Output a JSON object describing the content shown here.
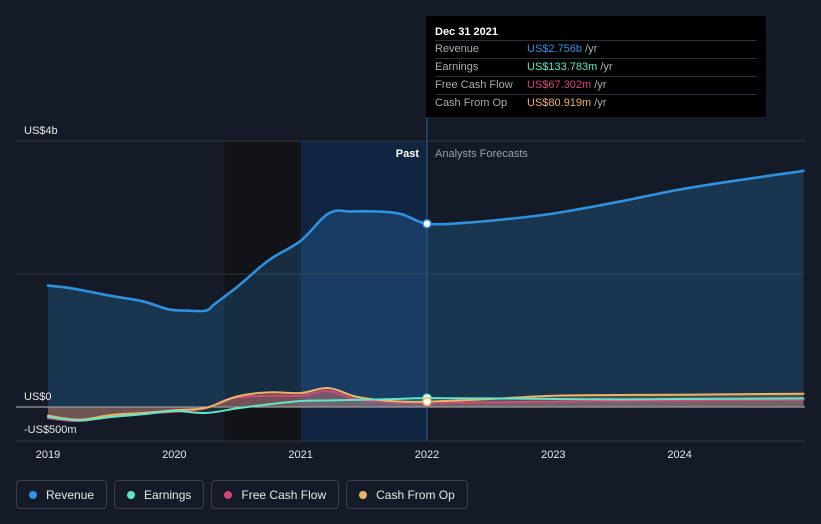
{
  "chart_data": {
    "type": "line",
    "x_unit": "year",
    "xlim": [
      2018.98,
      2024.98
    ],
    "ylim": [
      -500,
      4000
    ],
    "y_unit": "US$ millions",
    "y_tick_labels": [
      {
        "value": 4000,
        "label": "US$4b"
      },
      {
        "value": 0,
        "label": "US$0"
      },
      {
        "value": -500,
        "label": "-US$500m"
      }
    ],
    "x_tick_labels": [
      {
        "value": 2019,
        "label": "2019"
      },
      {
        "value": 2020,
        "label": "2020"
      },
      {
        "value": 2021,
        "label": "2021"
      },
      {
        "value": 2022,
        "label": "2022"
      },
      {
        "value": 2023,
        "label": "2023"
      },
      {
        "value": 2024,
        "label": "2024"
      }
    ],
    "divider_x": 2022.0,
    "past_shade_start": 2021.0,
    "past_label": "Past",
    "forecast_label": "Analysts Forecasts",
    "series": [
      {
        "name": "Revenue",
        "color": "#2f92e0",
        "points": [
          [
            2019.0,
            1825
          ],
          [
            2019.2,
            1780
          ],
          [
            2019.5,
            1670
          ],
          [
            2019.75,
            1590
          ],
          [
            2019.95,
            1470
          ],
          [
            2020.1,
            1450
          ],
          [
            2020.25,
            1450
          ],
          [
            2020.32,
            1550
          ],
          [
            2020.5,
            1810
          ],
          [
            2020.75,
            2210
          ],
          [
            2021.0,
            2500
          ],
          [
            2021.22,
            2910
          ],
          [
            2021.4,
            2940
          ],
          [
            2021.6,
            2940
          ],
          [
            2021.8,
            2900
          ],
          [
            2022.0,
            2756
          ],
          [
            2022.3,
            2770
          ],
          [
            2022.6,
            2820
          ],
          [
            2023.0,
            2910
          ],
          [
            2023.5,
            3080
          ],
          [
            2024.0,
            3270
          ],
          [
            2024.5,
            3420
          ],
          [
            2024.98,
            3550
          ]
        ]
      },
      {
        "name": "Earnings",
        "color": "#5ee6c8",
        "points": [
          [
            2019.0,
            -150
          ],
          [
            2019.25,
            -200
          ],
          [
            2019.5,
            -150
          ],
          [
            2019.75,
            -110
          ],
          [
            2020.0,
            -60
          ],
          [
            2020.25,
            -90
          ],
          [
            2020.5,
            -20
          ],
          [
            2020.75,
            40
          ],
          [
            2021.0,
            90
          ],
          [
            2021.25,
            100
          ],
          [
            2021.5,
            110
          ],
          [
            2021.75,
            120
          ],
          [
            2022.0,
            134
          ],
          [
            2022.5,
            130
          ],
          [
            2023.0,
            120
          ],
          [
            2023.5,
            115
          ],
          [
            2024.0,
            120
          ],
          [
            2024.98,
            130
          ]
        ]
      },
      {
        "name": "Free Cash Flow",
        "color": "#d5467d",
        "points": [
          [
            2019.0,
            -170
          ],
          [
            2019.25,
            -210
          ],
          [
            2019.5,
            -140
          ],
          [
            2019.75,
            -100
          ],
          [
            2020.0,
            -70
          ],
          [
            2020.25,
            -20
          ],
          [
            2020.45,
            130
          ],
          [
            2020.75,
            170
          ],
          [
            2021.0,
            170
          ],
          [
            2021.22,
            240
          ],
          [
            2021.45,
            110
          ],
          [
            2021.75,
            70
          ],
          [
            2022.0,
            67
          ],
          [
            2022.5,
            70
          ],
          [
            2023.0,
            80
          ],
          [
            2023.5,
            90
          ],
          [
            2024.0,
            95
          ],
          [
            2024.98,
            110
          ]
        ]
      },
      {
        "name": "Cash From Op",
        "color": "#eeb466",
        "points": [
          [
            2019.0,
            -130
          ],
          [
            2019.25,
            -190
          ],
          [
            2019.5,
            -120
          ],
          [
            2019.75,
            -90
          ],
          [
            2020.0,
            -50
          ],
          [
            2020.25,
            -10
          ],
          [
            2020.5,
            160
          ],
          [
            2020.75,
            220
          ],
          [
            2021.0,
            210
          ],
          [
            2021.22,
            285
          ],
          [
            2021.45,
            150
          ],
          [
            2021.75,
            85
          ],
          [
            2022.0,
            81
          ],
          [
            2022.5,
            120
          ],
          [
            2023.0,
            170
          ],
          [
            2023.5,
            180
          ],
          [
            2024.0,
            185
          ],
          [
            2024.98,
            200
          ]
        ]
      }
    ]
  },
  "tooltip": {
    "date": "Dec 31 2021",
    "rows": [
      {
        "label": "Revenue",
        "value": "US$2.756b",
        "unit": "/yr",
        "color": "#2f92e0"
      },
      {
        "label": "Earnings",
        "value": "US$133.783m",
        "unit": "/yr",
        "color": "#5ee6c8"
      },
      {
        "label": "Free Cash Flow",
        "value": "US$67.302m",
        "unit": "/yr",
        "color": "#d5467d"
      },
      {
        "label": "Cash From Op",
        "value": "US$80.919m",
        "unit": "/yr",
        "color": "#eeb466"
      }
    ]
  },
  "legend": [
    {
      "label": "Revenue",
      "color": "#2f92e0"
    },
    {
      "label": "Earnings",
      "color": "#5ee6c8"
    },
    {
      "label": "Free Cash Flow",
      "color": "#d5467d"
    },
    {
      "label": "Cash From Op",
      "color": "#eeb466"
    }
  ]
}
